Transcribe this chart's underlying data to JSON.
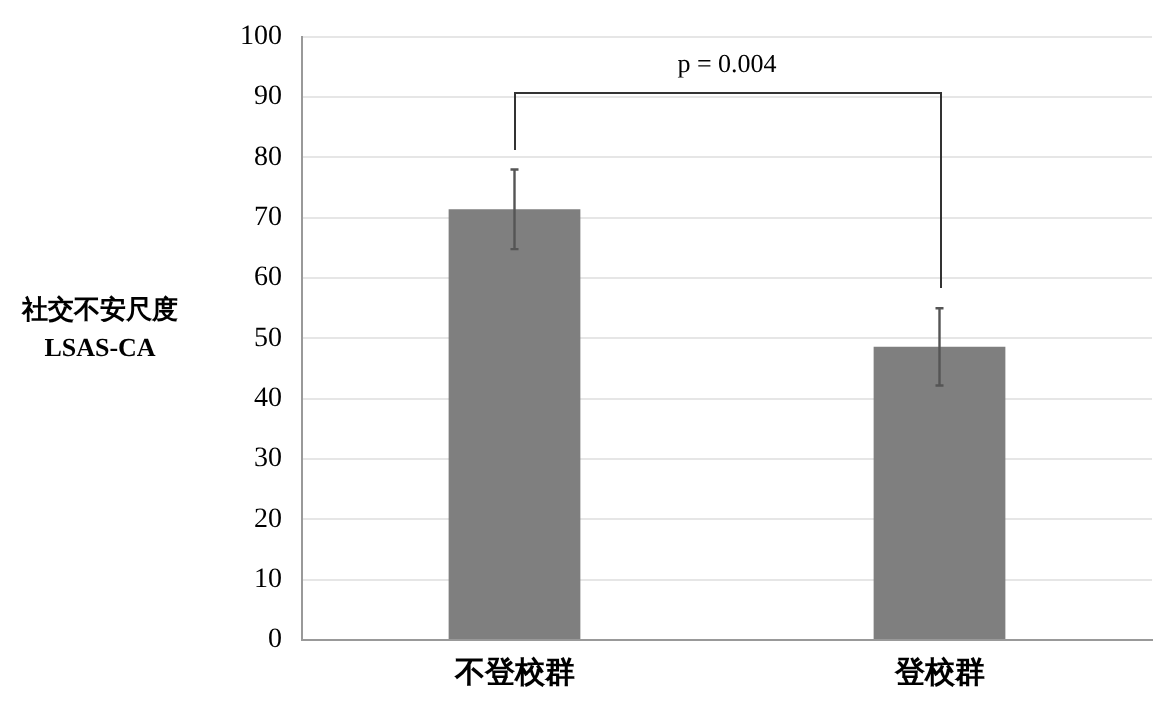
{
  "chart_data": {
    "type": "bar",
    "ylabel": "社交不安尺度\nLSAS-CA",
    "categories": [
      "不登校群",
      "登校群"
    ],
    "values": [
      71.4,
      48.6
    ],
    "errors": [
      6.6,
      6.4
    ],
    "color": "#7f7f7f",
    "ylim": [
      0,
      100
    ],
    "yticks": [
      0,
      10,
      20,
      30,
      40,
      50,
      60,
      70,
      80,
      90,
      100
    ],
    "grid": "y",
    "annotations": [
      "p = 0.004"
    ]
  }
}
